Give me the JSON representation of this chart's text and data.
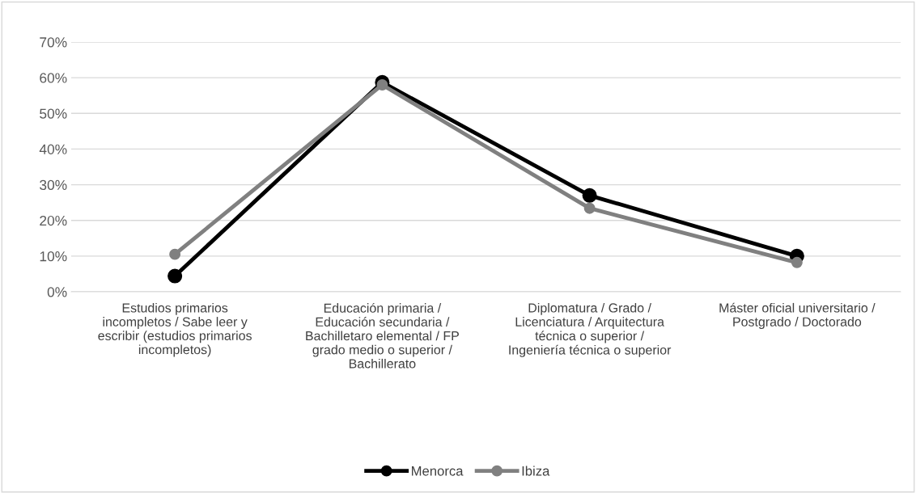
{
  "chart_data": {
    "type": "line",
    "categories": [
      "Estudios primarios\nincompletos / Sabe leer y\nescribir (estudios primarios\nincompletos)",
      "Educación primaria /\nEducación secundaria /\nBachilletaro elemental / FP\ngrado medio o superior /\nBachillerato",
      "Diplomatura / Grado /\nLicenciatura / Arquitectura\ntécnica o superior /\nIngeniería técnica o superior",
      "Máster oficial universitario /\nPostgrado / Doctorado"
    ],
    "series": [
      {
        "name": "Menorca",
        "color": "#000000",
        "values": [
          4.4,
          58.7,
          27.0,
          10.0
        ]
      },
      {
        "name": "Ibiza",
        "color": "#808080",
        "values": [
          10.5,
          58.0,
          23.4,
          8.2
        ]
      }
    ],
    "ylim": [
      0,
      70
    ],
    "yticks": [
      {
        "value": 0,
        "label": "0%"
      },
      {
        "value": 10,
        "label": "10%"
      },
      {
        "value": 20,
        "label": "20%"
      },
      {
        "value": 30,
        "label": "30%"
      },
      {
        "value": 40,
        "label": "40%"
      },
      {
        "value": 50,
        "label": "50%"
      },
      {
        "value": 60,
        "label": "60%"
      },
      {
        "value": 70,
        "label": "70%"
      }
    ],
    "grid": "y",
    "legend": "bottom",
    "marker": "circle",
    "line_style": "solid"
  }
}
